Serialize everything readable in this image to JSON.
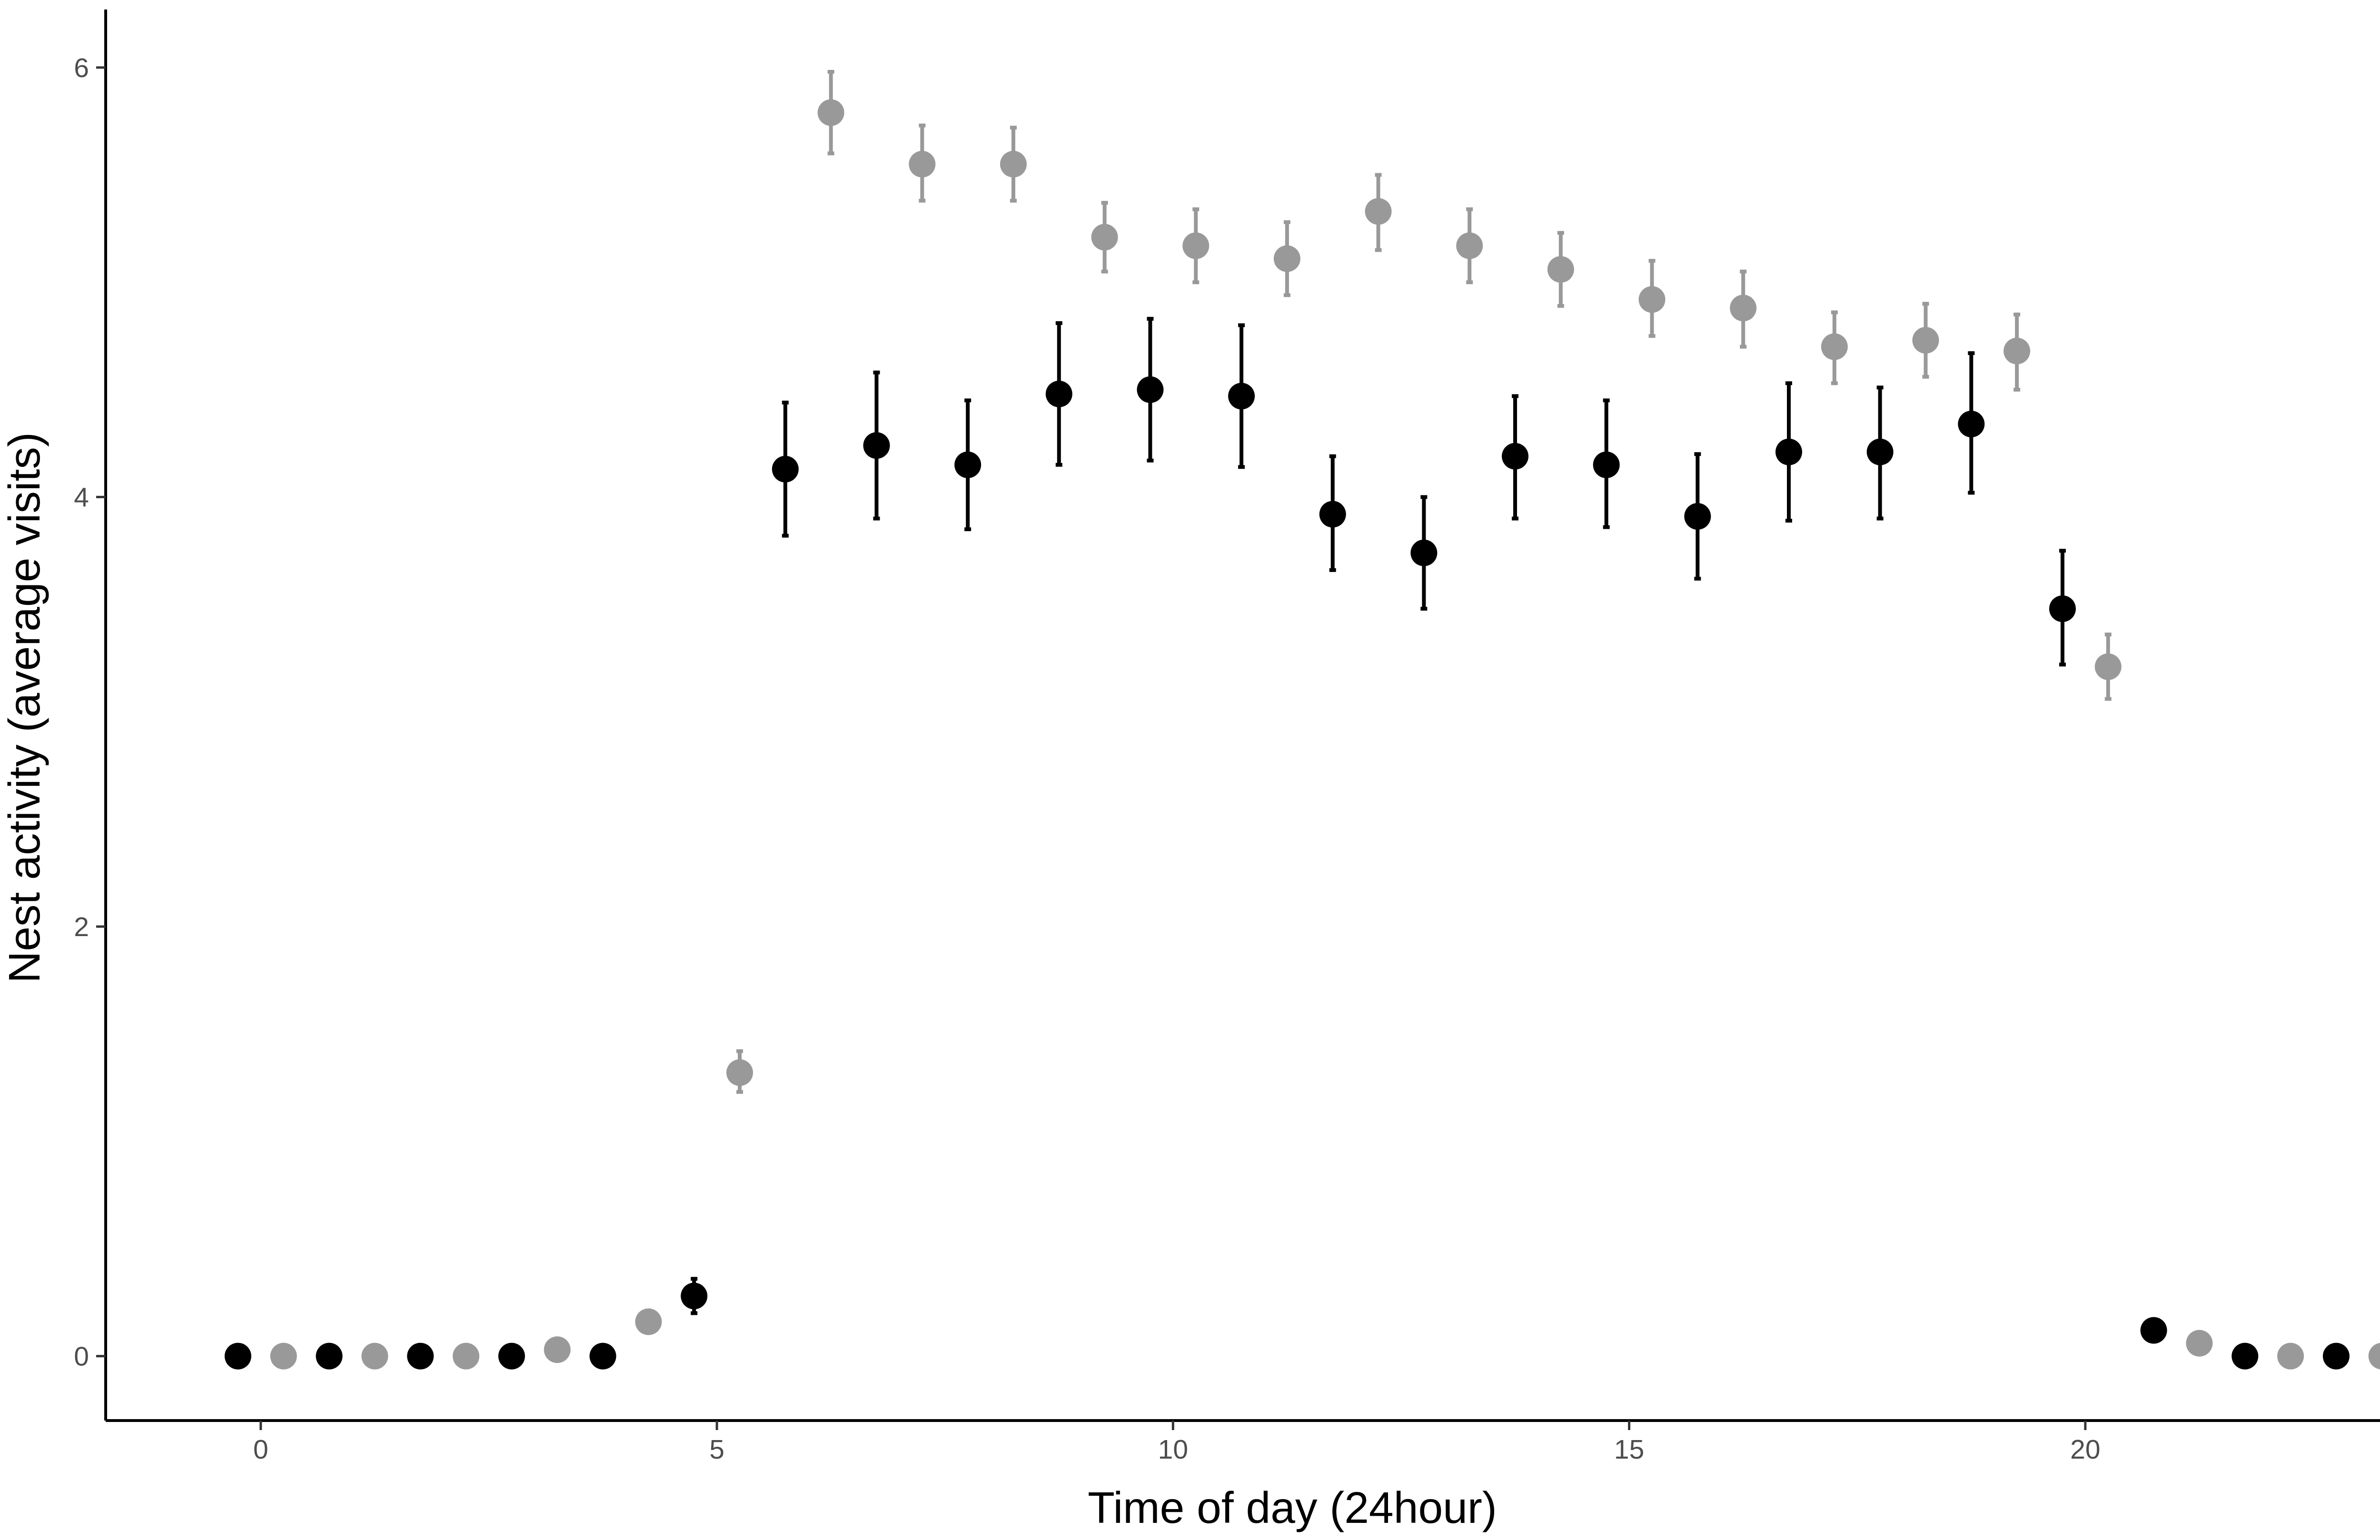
{
  "chart_data": {
    "type": "scatter",
    "xlabel": "Time of day (24hour)",
    "ylabel": "Nest activity (average visits)",
    "xlim": [
      -1.7,
      24.3
    ],
    "ylim": [
      -0.3,
      6.27
    ],
    "x_ticks": [
      "0",
      "5",
      "10",
      "15",
      "20"
    ],
    "y_ticks": [
      "0",
      "2",
      "4",
      "6"
    ],
    "grid": false,
    "legend": "none",
    "error_bars": true,
    "series": [
      {
        "color": "#000000",
        "points": [
          {
            "x": -0.25,
            "y": 0,
            "low": 0,
            "high": 0
          },
          {
            "x": 0.75,
            "y": 0,
            "low": 0,
            "high": 0
          },
          {
            "x": 1.75,
            "y": 0,
            "low": 0,
            "high": 0
          },
          {
            "x": 2.75,
            "y": 0,
            "low": 0,
            "high": 0
          },
          {
            "x": 3.75,
            "y": 0,
            "low": 0,
            "high": 0
          },
          {
            "x": 4.75,
            "y": 0.28,
            "low": 0.2,
            "high": 0.36
          },
          {
            "x": 5.75,
            "y": 4.13,
            "low": 3.82,
            "high": 4.44
          },
          {
            "x": 6.75,
            "y": 4.24,
            "low": 3.9,
            "high": 4.58
          },
          {
            "x": 7.75,
            "y": 4.15,
            "low": 3.85,
            "high": 4.45
          },
          {
            "x": 8.75,
            "y": 4.48,
            "low": 4.15,
            "high": 4.81
          },
          {
            "x": 9.75,
            "y": 4.5,
            "low": 4.17,
            "high": 4.83
          },
          {
            "x": 10.75,
            "y": 4.47,
            "low": 4.14,
            "high": 4.8
          },
          {
            "x": 11.75,
            "y": 3.92,
            "low": 3.66,
            "high": 4.19
          },
          {
            "x": 12.75,
            "y": 3.74,
            "low": 3.48,
            "high": 4.0
          },
          {
            "x": 13.75,
            "y": 4.19,
            "low": 3.9,
            "high": 4.47
          },
          {
            "x": 14.75,
            "y": 4.15,
            "low": 3.86,
            "high": 4.45
          },
          {
            "x": 15.75,
            "y": 3.91,
            "low": 3.62,
            "high": 4.2
          },
          {
            "x": 16.75,
            "y": 4.21,
            "low": 3.89,
            "high": 4.53
          },
          {
            "x": 17.75,
            "y": 4.21,
            "low": 3.9,
            "high": 4.51
          },
          {
            "x": 18.75,
            "y": 4.34,
            "low": 4.02,
            "high": 4.67
          },
          {
            "x": 19.75,
            "y": 3.48,
            "low": 3.22,
            "high": 3.75
          },
          {
            "x": 20.75,
            "y": 0.12,
            "low": 0.12,
            "high": 0.12
          },
          {
            "x": 21.75,
            "y": 0,
            "low": 0,
            "high": 0
          },
          {
            "x": 22.75,
            "y": 0,
            "low": 0,
            "high": 0
          }
        ]
      },
      {
        "color": "#999999",
        "points": [
          {
            "x": 0.25,
            "y": 0,
            "low": 0,
            "high": 0
          },
          {
            "x": 1.25,
            "y": 0,
            "low": 0,
            "high": 0
          },
          {
            "x": 2.25,
            "y": 0,
            "low": 0,
            "high": 0
          },
          {
            "x": 3.25,
            "y": 0.03,
            "low": 0.03,
            "high": 0.03
          },
          {
            "x": 4.25,
            "y": 0.16,
            "low": 0.16,
            "high": 0.16
          },
          {
            "x": 5.25,
            "y": 1.32,
            "low": 1.23,
            "high": 1.42
          },
          {
            "x": 6.25,
            "y": 5.79,
            "low": 5.6,
            "high": 5.98
          },
          {
            "x": 7.25,
            "y": 5.55,
            "low": 5.38,
            "high": 5.73
          },
          {
            "x": 8.25,
            "y": 5.55,
            "low": 5.38,
            "high": 5.72
          },
          {
            "x": 9.25,
            "y": 5.21,
            "low": 5.05,
            "high": 5.37
          },
          {
            "x": 10.25,
            "y": 5.17,
            "low": 5.0,
            "high": 5.34
          },
          {
            "x": 11.25,
            "y": 5.11,
            "low": 4.94,
            "high": 5.28
          },
          {
            "x": 12.25,
            "y": 5.33,
            "low": 5.15,
            "high": 5.5
          },
          {
            "x": 13.25,
            "y": 5.17,
            "low": 5.0,
            "high": 5.34
          },
          {
            "x": 14.25,
            "y": 5.06,
            "low": 4.89,
            "high": 5.23
          },
          {
            "x": 15.25,
            "y": 4.92,
            "low": 4.75,
            "high": 5.1
          },
          {
            "x": 16.25,
            "y": 4.88,
            "low": 4.7,
            "high": 5.05
          },
          {
            "x": 17.25,
            "y": 4.7,
            "low": 4.53,
            "high": 4.86
          },
          {
            "x": 18.25,
            "y": 4.73,
            "low": 4.56,
            "high": 4.9
          },
          {
            "x": 19.25,
            "y": 4.68,
            "low": 4.5,
            "high": 4.85
          },
          {
            "x": 20.25,
            "y": 3.21,
            "low": 3.06,
            "high": 3.36
          },
          {
            "x": 21.25,
            "y": 0.06,
            "low": 0.06,
            "high": 0.06
          },
          {
            "x": 22.25,
            "y": 0,
            "low": 0,
            "high": 0
          },
          {
            "x": 23.25,
            "y": 0,
            "low": 0,
            "high": 0
          }
        ]
      }
    ]
  }
}
